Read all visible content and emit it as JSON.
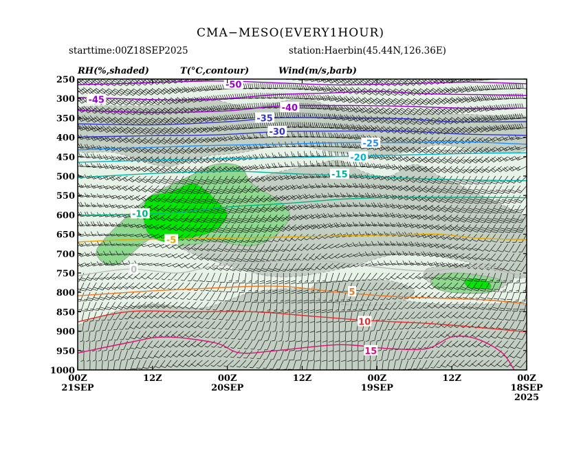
{
  "header": {
    "title": "CMA−MESO(EVERY1HOUR)",
    "starttime": "starttime:00Z18SEP2025",
    "station": "station:Haerbin(45.44N,126.36E)"
  },
  "legend": {
    "rh": "RH(%,shaded)",
    "temp": "T(°C,contour)",
    "wind": "Wind(m/s,barb)"
  },
  "chart_data": {
    "type": "heatmap",
    "title": "CMA−MESO(EVERY1HOUR)",
    "y_axis": {
      "quantity": "pressure (hPa)",
      "ticks": [
        250,
        300,
        350,
        400,
        450,
        500,
        550,
        600,
        650,
        700,
        750,
        800,
        850,
        900,
        950,
        1000
      ],
      "range": [
        1000,
        250
      ]
    },
    "x_axis": {
      "direction": "time decreasing to the right",
      "range_hours_from_start": [
        72,
        0
      ],
      "ticks": [
        {
          "hour": 72,
          "label": "00Z",
          "label2": "21SEP",
          "label3": ""
        },
        {
          "hour": 60,
          "label": "12Z",
          "label2": "",
          "label3": ""
        },
        {
          "hour": 48,
          "label": "00Z",
          "label2": "20SEP",
          "label3": ""
        },
        {
          "hour": 36,
          "label": "12Z",
          "label2": "",
          "label3": ""
        },
        {
          "hour": 24,
          "label": "00Z",
          "label2": "19SEP",
          "label3": ""
        },
        {
          "hour": 12,
          "label": "12Z",
          "label2": "",
          "label3": ""
        },
        {
          "hour": 0,
          "label": "00Z",
          "label2": "18SEP",
          "label3": "2025"
        }
      ]
    },
    "rh_shading": {
      "levels": [
        30,
        50,
        70,
        90
      ],
      "colors": [
        "#e8f3e8",
        "#c2cfc2",
        "#8fd88f",
        "#00e600"
      ],
      "regions": [
        {
          "level": 50,
          "points": [
            [
              73,
              330
            ],
            [
              60,
              318
            ],
            [
              52,
              300
            ],
            [
              44,
              322
            ],
            [
              36,
              300
            ],
            [
              30,
              330
            ],
            [
              26,
              332
            ],
            [
              20,
              340
            ],
            [
              12,
              340
            ],
            [
              4,
              345
            ],
            [
              0,
              350
            ],
            [
              0,
              430
            ],
            [
              6,
              440
            ],
            [
              14,
              420
            ],
            [
              22,
              445
            ],
            [
              30,
              440
            ],
            [
              38,
              420
            ],
            [
              46,
              440
            ],
            [
              52,
              450
            ],
            [
              58,
              475
            ],
            [
              66,
              440
            ],
            [
              73,
              430
            ]
          ]
        },
        {
          "level": 50,
          "points": [
            [
              60,
              615
            ],
            [
              56,
              560
            ],
            [
              52,
              545
            ],
            [
              46,
              520
            ],
            [
              40,
              490
            ],
            [
              34,
              470
            ],
            [
              30,
              460
            ],
            [
              26,
              490
            ],
            [
              22,
              500
            ],
            [
              18,
              470
            ],
            [
              14,
              500
            ],
            [
              10,
              530
            ],
            [
              6,
              560
            ],
            [
              2,
              590
            ],
            [
              0,
              620
            ],
            [
              0,
              760
            ],
            [
              10,
              720
            ],
            [
              20,
              700
            ],
            [
              30,
              740
            ],
            [
              40,
              760
            ],
            [
              50,
              720
            ],
            [
              56,
              680
            ]
          ]
        },
        {
          "level": 50,
          "points": [
            [
              73,
              900
            ],
            [
              66,
              850
            ],
            [
              60,
              830
            ],
            [
              52,
              840
            ],
            [
              44,
              800
            ],
            [
              36,
              790
            ],
            [
              28,
              800
            ],
            [
              20,
              820
            ],
            [
              14,
              830
            ],
            [
              6,
              830
            ],
            [
              0,
              840
            ],
            [
              0,
              1000
            ],
            [
              73,
              1000
            ]
          ]
        },
        {
          "level": 50,
          "points": [
            [
              34,
              780
            ],
            [
              30,
              770
            ],
            [
              22,
              770
            ],
            [
              18,
              800
            ],
            [
              22,
              830
            ],
            [
              30,
              830
            ],
            [
              34,
              810
            ]
          ]
        },
        {
          "level": 50,
          "points": [
            [
              16,
              740
            ],
            [
              12,
              730
            ],
            [
              6,
              730
            ],
            [
              2,
              760
            ],
            [
              6,
              800
            ],
            [
              12,
              790
            ],
            [
              16,
              770
            ]
          ]
        },
        {
          "level": 70,
          "points": [
            [
              61,
              560
            ],
            [
              58,
              530
            ],
            [
              54,
              500
            ],
            [
              50,
              470
            ],
            [
              46,
              475
            ],
            [
              44,
              520
            ],
            [
              40,
              560
            ],
            [
              38,
              600
            ],
            [
              40,
              650
            ],
            [
              44,
              680
            ],
            [
              50,
              670
            ],
            [
              56,
              680
            ],
            [
              60,
              660
            ],
            [
              66,
              730
            ],
            [
              69,
              700
            ],
            [
              67,
              650
            ]
          ]
        },
        {
          "level": 70,
          "points": [
            [
              15,
              760
            ],
            [
              12,
              750
            ],
            [
              8,
              755
            ],
            [
              4,
              770
            ],
            [
              6,
              800
            ],
            [
              12,
              800
            ],
            [
              15,
              785
            ]
          ]
        },
        {
          "level": 90,
          "points": [
            [
              61,
              560
            ],
            [
              57,
              540
            ],
            [
              54,
              520
            ],
            [
              52,
              530
            ],
            [
              50,
              560
            ],
            [
              48,
              600
            ],
            [
              50,
              640
            ],
            [
              54,
              660
            ],
            [
              58,
              670
            ],
            [
              61,
              640
            ]
          ]
        },
        {
          "level": 90,
          "points": [
            [
              10,
              770
            ],
            [
              8,
              765
            ],
            [
              6,
              775
            ],
            [
              6,
              790
            ],
            [
              9,
              790
            ]
          ]
        }
      ]
    },
    "temperature_contours": [
      {
        "value": -50,
        "color": "#9900cc",
        "points": [
          [
            73,
            265
          ],
          [
            66,
            262
          ],
          [
            50,
            255
          ],
          [
            40,
            260
          ],
          [
            30,
            265
          ],
          [
            20,
            262
          ],
          [
            10,
            258
          ],
          [
            4,
            260
          ],
          [
            0,
            262
          ]
        ],
        "label_at": [
          47,
          263
        ]
      },
      {
        "value": -45,
        "color": "#9900cc",
        "points": [
          [
            73,
            297
          ],
          [
            66,
            300
          ],
          [
            56,
            304
          ],
          [
            48,
            300
          ],
          [
            40,
            290
          ],
          [
            32,
            286
          ],
          [
            24,
            282
          ],
          [
            16,
            288
          ],
          [
            8,
            290
          ],
          [
            0,
            292
          ]
        ],
        "label_at": [
          69,
          302
        ]
      },
      {
        "value": -40,
        "color": "#9900cc",
        "points": [
          [
            73,
            330
          ],
          [
            60,
            336
          ],
          [
            48,
            332
          ],
          [
            40,
            320
          ],
          [
            30,
            318
          ],
          [
            20,
            320
          ],
          [
            10,
            325
          ],
          [
            0,
            325
          ]
        ],
        "label_at": [
          38,
          323
        ]
      },
      {
        "value": -35,
        "color": "#3333cc",
        "points": [
          [
            73,
            365
          ],
          [
            60,
            368
          ],
          [
            48,
            360
          ],
          [
            40,
            350
          ],
          [
            30,
            350
          ],
          [
            20,
            352
          ],
          [
            12,
            360
          ],
          [
            0,
            360
          ]
        ],
        "label_at": [
          42,
          350
        ]
      },
      {
        "value": -30,
        "color": "#3333cc",
        "points": [
          [
            73,
            400
          ],
          [
            60,
            396
          ],
          [
            50,
            394
          ],
          [
            40,
            386
          ],
          [
            30,
            384
          ],
          [
            20,
            384
          ],
          [
            10,
            392
          ],
          [
            0,
            395
          ]
        ],
        "label_at": [
          40,
          385
        ]
      },
      {
        "value": -25,
        "color": "#1e90ff",
        "points": [
          [
            73,
            433
          ],
          [
            60,
            426
          ],
          [
            50,
            421
          ],
          [
            40,
            418
          ],
          [
            30,
            414
          ],
          [
            20,
            414
          ],
          [
            10,
            412
          ],
          [
            0,
            418
          ]
        ],
        "label_at": [
          25,
          415
        ]
      },
      {
        "value": -20,
        "color": "#00b3cc",
        "points": [
          [
            73,
            465
          ],
          [
            62,
            460
          ],
          [
            56,
            458
          ],
          [
            48,
            455
          ],
          [
            36,
            452
          ],
          [
            26,
            448
          ],
          [
            20,
            446
          ],
          [
            10,
            442
          ],
          [
            0,
            440
          ]
        ],
        "label_at": [
          27,
          451
        ]
      },
      {
        "value": -15,
        "color": "#00b3a0",
        "points": [
          [
            73,
            505
          ],
          [
            62,
            495
          ],
          [
            54,
            490
          ],
          [
            46,
            488
          ],
          [
            36,
            495
          ],
          [
            26,
            500
          ],
          [
            20,
            505
          ],
          [
            10,
            510
          ],
          [
            0,
            512
          ]
        ],
        "label_at": [
          30,
          495
        ]
      },
      {
        "value": -10,
        "color": "#00b384",
        "points": [
          [
            73,
            602
          ],
          [
            62,
            598
          ],
          [
            56,
            594
          ],
          [
            48,
            580
          ],
          [
            38,
            570
          ],
          [
            30,
            560
          ],
          [
            24,
            556
          ],
          [
            18,
            555
          ],
          [
            10,
            555
          ],
          [
            0,
            556
          ]
        ],
        "label_at": [
          62,
          597
        ]
      },
      {
        "value": -5,
        "color": "#e6a800",
        "points": [
          [
            73,
            671
          ],
          [
            64,
            664
          ],
          [
            56,
            662
          ],
          [
            48,
            660
          ],
          [
            40,
            658
          ],
          [
            30,
            654
          ],
          [
            20,
            652
          ],
          [
            14,
            650
          ],
          [
            8,
            660
          ],
          [
            0,
            664
          ]
        ],
        "label_at": [
          57,
          664
        ]
      },
      {
        "value": 0,
        "color": "#bbbbbb",
        "points": [
          [
            73,
            760
          ],
          [
            64,
            740
          ],
          [
            56,
            750
          ],
          [
            50,
            732
          ],
          [
            40,
            720
          ],
          [
            32,
            720
          ],
          [
            24,
            735
          ],
          [
            16,
            745
          ],
          [
            8,
            735
          ],
          [
            0,
            760
          ]
        ],
        "label_at": [
          63,
          740
        ]
      },
      {
        "value": 5,
        "color": "#ee7722",
        "points": [
          [
            73,
            810
          ],
          [
            62,
            798
          ],
          [
            52,
            790
          ],
          [
            40,
            784
          ],
          [
            30,
            800
          ],
          [
            22,
            810
          ],
          [
            14,
            815
          ],
          [
            6,
            820
          ],
          [
            0,
            830
          ]
        ],
        "label_at": [
          28,
          798
        ]
      },
      {
        "value": 10,
        "color": "#e03030",
        "points": [
          [
            73,
            880
          ],
          [
            64,
            850
          ],
          [
            54,
            850
          ],
          [
            44,
            850
          ],
          [
            34,
            862
          ],
          [
            26,
            872
          ],
          [
            16,
            880
          ],
          [
            8,
            890
          ],
          [
            0,
            902
          ]
        ],
        "label_at": [
          26,
          875
        ]
      },
      {
        "value": 15,
        "color": "#dd1177",
        "points": [
          [
            73,
            960
          ],
          [
            64,
            930
          ],
          [
            58,
            915
          ],
          [
            50,
            930
          ],
          [
            46,
            956
          ],
          [
            40,
            950
          ],
          [
            30,
            935
          ],
          [
            22,
            945
          ],
          [
            16,
            945
          ],
          [
            12,
            915
          ],
          [
            8,
            920
          ],
          [
            4,
            955
          ],
          [
            2,
            1000
          ]
        ],
        "label_at": [
          25,
          950
        ]
      }
    ],
    "wind_barbs_note": "barbs drawn at every hour on every 25 hPa level"
  }
}
